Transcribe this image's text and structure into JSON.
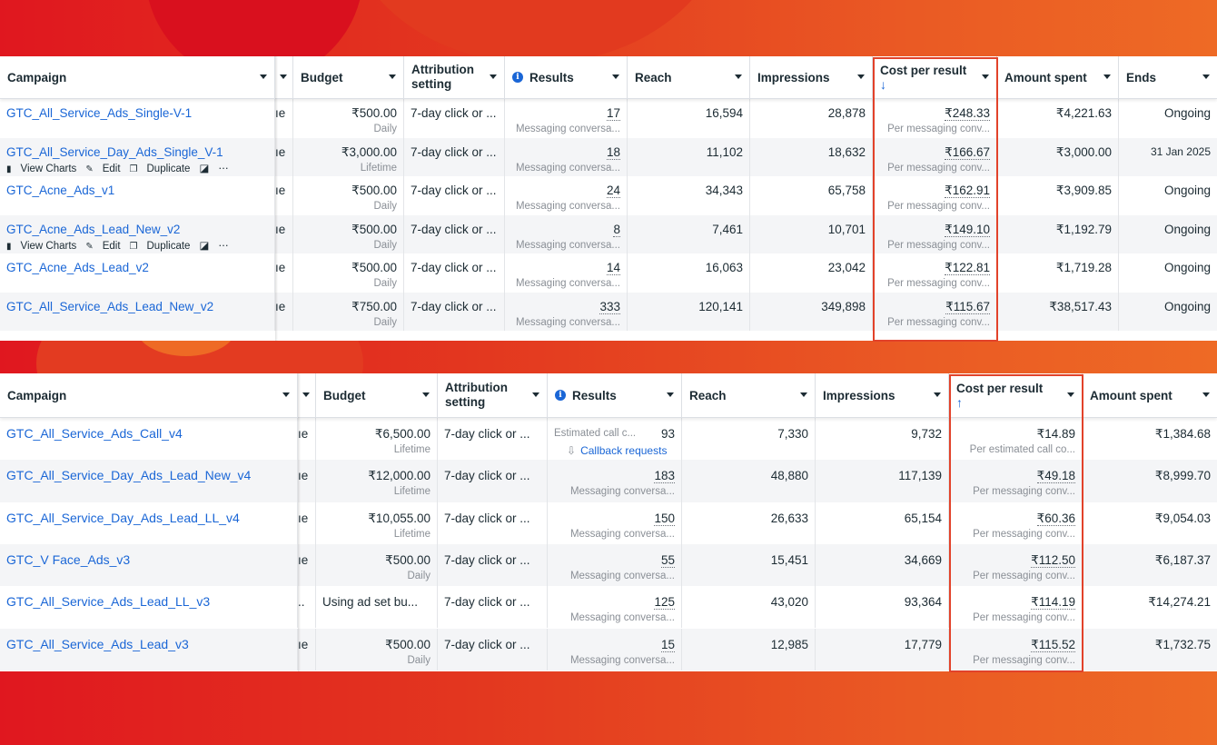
{
  "top_table": {
    "headers": {
      "campaign": "Campaign",
      "budget": "Budget",
      "attribution": "Attribution setting",
      "results": "Results",
      "reach": "Reach",
      "impressions": "Impressions",
      "cost_per_result": "Cost per result",
      "cost_sort_arrow": "↓",
      "amount_spent": "Amount spent",
      "ends": "Ends"
    },
    "rows": [
      {
        "campaign": "GTC_All_Service_Ads_Single-V-1",
        "delivery": "ıe",
        "budget": "₹500.00",
        "budget_type": "Daily",
        "attribution": "7-day click or ...",
        "results": "17",
        "results_type": "Messaging conversa...",
        "reach": "16,594",
        "impressions": "28,878",
        "cost": "₹248.33",
        "cost_type": "Per messaging conv...",
        "spent": "₹4,221.63",
        "ends": "Ongoing"
      },
      {
        "campaign": "GTC_All_Service_Day_Ads_Single_V-1",
        "delivery": "ıe",
        "budget": "₹3,000.00",
        "budget_type": "Lifetime",
        "attribution": "7-day click or ...",
        "results": "18",
        "results_type": "Messaging conversa...",
        "reach": "11,102",
        "impressions": "18,632",
        "cost": "₹166.67",
        "cost_type": "Per messaging conv...",
        "spent": "₹3,000.00",
        "ends": "31 Jan 2025"
      },
      {
        "campaign": "GTC_Acne_Ads_v1",
        "delivery": "ıe",
        "budget": "₹500.00",
        "budget_type": "Daily",
        "attribution": "7-day click or ...",
        "results": "24",
        "results_type": "Messaging conversa...",
        "reach": "34,343",
        "impressions": "65,758",
        "cost": "₹162.91",
        "cost_type": "Per messaging conv...",
        "spent": "₹3,909.85",
        "ends": "Ongoing"
      },
      {
        "campaign": "GTC_Acne_Ads_Lead_New_v2",
        "delivery": "ıe",
        "budget": "₹500.00",
        "budget_type": "Daily",
        "attribution": "7-day click or ...",
        "results": "8",
        "results_type": "Messaging conversa...",
        "reach": "7,461",
        "impressions": "10,701",
        "cost": "₹149.10",
        "cost_type": "Per messaging conv...",
        "spent": "₹1,192.79",
        "ends": "Ongoing"
      },
      {
        "campaign": "GTC_Acne_Ads_Lead_v2",
        "delivery": "ıe",
        "budget": "₹500.00",
        "budget_type": "Daily",
        "attribution": "7-day click or ...",
        "results": "14",
        "results_type": "Messaging conversa...",
        "reach": "16,063",
        "impressions": "23,042",
        "cost": "₹122.81",
        "cost_type": "Per messaging conv...",
        "spent": "₹1,719.28",
        "ends": "Ongoing"
      },
      {
        "campaign": "GTC_All_Service_Ads_Lead_New_v2",
        "delivery": "ıe",
        "budget": "₹750.00",
        "budget_type": "Daily",
        "attribution": "7-day click or ...",
        "results": "333",
        "results_type": "Messaging conversa...",
        "reach": "120,141",
        "impressions": "349,898",
        "cost": "₹115.67",
        "cost_type": "Per messaging conv...",
        "spent": "₹38,517.43",
        "ends": "Ongoing"
      }
    ],
    "row_actions": {
      "view_charts": "View Charts",
      "edit": "Edit",
      "duplicate": "Duplicate",
      "more": "⋯"
    }
  },
  "bottom_table": {
    "headers": {
      "campaign": "Campaign",
      "budget": "Budget",
      "attribution": "Attribution setting",
      "results": "Results",
      "reach": "Reach",
      "impressions": "Impressions",
      "cost_per_result": "Cost per result",
      "cost_sort_arrow": "↑",
      "amount_spent": "Amount spent"
    },
    "rows": [
      {
        "campaign": "GTC_All_Service_Ads_Call_v4",
        "delivery": "ıe",
        "budget": "₹6,500.00",
        "budget_type": "Lifetime",
        "attribution": "7-day click or ...",
        "results": "93",
        "results_type": "Estimated call c...",
        "results_extra": "Callback requests",
        "reach": "7,330",
        "impressions": "9,732",
        "cost": "₹14.89",
        "cost_type": "Per estimated call co...",
        "spent": "₹1,384.68"
      },
      {
        "campaign": "GTC_All_Service_Day_Ads_Lead_New_v4",
        "delivery": "ıe",
        "budget": "₹12,000.00",
        "budget_type": "Lifetime",
        "attribution": "7-day click or ...",
        "results": "183",
        "results_type": "Messaging conversa...",
        "reach": "48,880",
        "impressions": "117,139",
        "cost": "₹49.18",
        "cost_type": "Per messaging conv...",
        "spent": "₹8,999.70"
      },
      {
        "campaign": "GTC_All_Service_Day_Ads_Lead_LL_v4",
        "delivery": "ıe",
        "budget": "₹10,055.00",
        "budget_type": "Lifetime",
        "attribution": "7-day click or ...",
        "results": "150",
        "results_type": "Messaging conversa...",
        "reach": "26,633",
        "impressions": "65,154",
        "cost": "₹60.36",
        "cost_type": "Per messaging conv...",
        "spent": "₹9,054.03"
      },
      {
        "campaign": "GTC_V Face_Ads_v3",
        "delivery": "ıe",
        "budget": "₹500.00",
        "budget_type": "Daily",
        "attribution": "7-day click or ...",
        "results": "55",
        "results_type": "Messaging conversa...",
        "reach": "15,451",
        "impressions": "34,669",
        "cost": "₹112.50",
        "cost_type": "Per messaging conv...",
        "spent": "₹6,187.37"
      },
      {
        "campaign": "GTC_All_Service_Ads_Lead_LL_v3",
        "delivery": "..",
        "budget": "Using ad set bu...",
        "budget_type": "",
        "attribution": "7-day click or ...",
        "results": "125",
        "results_type": "Messaging conversa...",
        "reach": "43,020",
        "impressions": "93,364",
        "cost": "₹114.19",
        "cost_type": "Per messaging conv...",
        "spent": "₹14,274.21"
      },
      {
        "campaign": "GTC_All_Service_Ads_Lead_v3",
        "delivery": "ıe",
        "budget": "₹500.00",
        "budget_type": "Daily",
        "attribution": "7-day click or ...",
        "results": "15",
        "results_type": "Messaging conversa...",
        "reach": "12,985",
        "impressions": "17,779",
        "cost": "₹115.52",
        "cost_type": "Per messaging conv...",
        "spent": "₹1,732.75"
      }
    ]
  },
  "colors": {
    "link": "#1a66d6",
    "highlight_box": "#e2422a",
    "background_red": "#e0171f",
    "background_orange": "#ee6a25"
  }
}
